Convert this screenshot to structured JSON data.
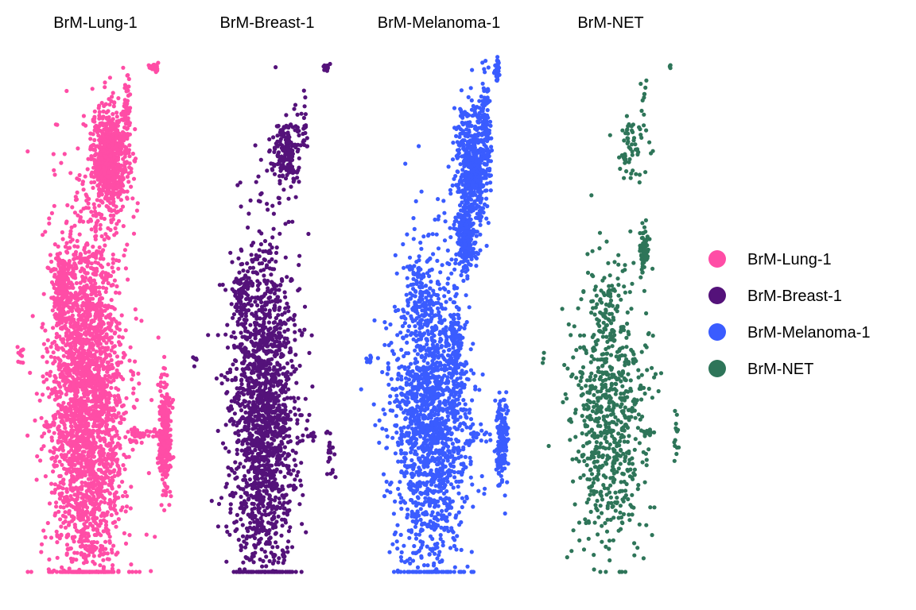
{
  "chart_data": {
    "type": "scatter",
    "panels": [
      {
        "title": "BrM-Lung-1",
        "color": "#FF4DA6",
        "clusters": [
          {
            "name": "top_spike",
            "cx": 3.0,
            "cy": 8.3,
            "sx": 0.05,
            "sy": 0.05,
            "n": 25
          },
          {
            "name": "upper_band",
            "cx": 1.95,
            "cy": 6.5,
            "sx": 0.22,
            "sy": 0.5,
            "n": 700
          },
          {
            "name": "upper_tail",
            "cx": 2.35,
            "cy": 7.3,
            "sx": 0.05,
            "sy": 0.45,
            "n": 60
          },
          {
            "name": "main_body",
            "cx": 1.4,
            "cy": 1.6,
            "sx": 0.45,
            "sy": 1.9,
            "n": 2600
          },
          {
            "name": "main_top",
            "cx": 0.8,
            "cy": 3.9,
            "sx": 0.1,
            "sy": 0.4,
            "n": 200
          },
          {
            "name": "left_arm",
            "cx": -0.2,
            "cy": 2.6,
            "sx": 0.04,
            "sy": 0.15,
            "n": 10
          },
          {
            "name": "bridge",
            "cx": 2.6,
            "cy": 1.0,
            "sx": 0.25,
            "sy": 0.08,
            "n": 45
          },
          {
            "name": "right_island",
            "cx": 3.25,
            "cy": 1.0,
            "sx": 0.08,
            "sy": 0.55,
            "n": 260
          }
        ]
      },
      {
        "title": "BrM-Breast-1",
        "color": "#54127A",
        "clusters": [
          {
            "name": "top_spike",
            "cx": 3.0,
            "cy": 8.3,
            "sx": 0.04,
            "sy": 0.05,
            "n": 12
          },
          {
            "name": "upper_band",
            "cx": 2.05,
            "cy": 6.6,
            "sx": 0.18,
            "sy": 0.35,
            "n": 180
          },
          {
            "name": "upper_tail",
            "cx": 2.5,
            "cy": 7.2,
            "sx": 0.04,
            "sy": 0.3,
            "n": 18
          },
          {
            "name": "main_body",
            "cx": 1.5,
            "cy": 1.4,
            "sx": 0.4,
            "sy": 1.7,
            "n": 1700
          },
          {
            "name": "main_top",
            "cx": 1.0,
            "cy": 3.8,
            "sx": 0.1,
            "sy": 0.3,
            "n": 60
          },
          {
            "name": "left_arm",
            "cx": -0.1,
            "cy": 2.5,
            "sx": 0.03,
            "sy": 0.12,
            "n": 6
          },
          {
            "name": "bridge",
            "cx": 2.6,
            "cy": 1.0,
            "sx": 0.12,
            "sy": 0.08,
            "n": 10
          },
          {
            "name": "right_island",
            "cx": 3.1,
            "cy": 0.6,
            "sx": 0.06,
            "sy": 0.3,
            "n": 22
          }
        ]
      },
      {
        "title": "BrM-Melanoma-1",
        "color": "#3A5CFF",
        "clusters": [
          {
            "name": "top_spike",
            "cx": 3.0,
            "cy": 8.25,
            "sx": 0.04,
            "sy": 0.12,
            "n": 40
          },
          {
            "name": "upper_band",
            "cx": 2.4,
            "cy": 6.3,
            "sx": 0.2,
            "sy": 0.6,
            "n": 500
          },
          {
            "name": "upper_tail",
            "cx": 2.7,
            "cy": 7.3,
            "sx": 0.06,
            "sy": 0.5,
            "n": 90
          },
          {
            "name": "diagonal",
            "cx": 2.25,
            "cy": 4.9,
            "sx": 0.12,
            "sy": 0.35,
            "n": 250
          },
          {
            "name": "main_body",
            "cx": 1.4,
            "cy": 1.3,
            "sx": 0.45,
            "sy": 1.6,
            "n": 1600
          },
          {
            "name": "main_top",
            "cx": 1.2,
            "cy": 3.6,
            "sx": 0.12,
            "sy": 0.4,
            "n": 80
          },
          {
            "name": "mid_column",
            "cx": 2.0,
            "cy": 2.6,
            "sx": 0.1,
            "sy": 0.5,
            "n": 120
          },
          {
            "name": "left_arm",
            "cx": -0.05,
            "cy": 2.5,
            "sx": 0.03,
            "sy": 0.12,
            "n": 8
          },
          {
            "name": "bridge",
            "cx": 2.55,
            "cy": 1.0,
            "sx": 0.15,
            "sy": 0.07,
            "n": 20
          },
          {
            "name": "right_island",
            "cx": 3.1,
            "cy": 0.95,
            "sx": 0.07,
            "sy": 0.45,
            "n": 160
          }
        ]
      },
      {
        "title": "BrM-NET",
        "color": "#2E7559",
        "clusters": [
          {
            "name": "top_spike",
            "cx": 3.0,
            "cy": 8.3,
            "sx": 0.03,
            "sy": 0.03,
            "n": 4
          },
          {
            "name": "upper_tail",
            "cx": 2.4,
            "cy": 7.6,
            "sx": 0.05,
            "sy": 0.25,
            "n": 10
          },
          {
            "name": "upper_band",
            "cx": 2.05,
            "cy": 6.6,
            "sx": 0.2,
            "sy": 0.35,
            "n": 60
          },
          {
            "name": "diagonal",
            "cx": 2.4,
            "cy": 4.7,
            "sx": 0.05,
            "sy": 0.25,
            "n": 70
          },
          {
            "name": "main_body",
            "cx": 1.55,
            "cy": 1.3,
            "sx": 0.45,
            "sy": 1.4,
            "n": 700
          },
          {
            "name": "main_top",
            "cx": 1.5,
            "cy": 3.6,
            "sx": 0.12,
            "sy": 0.45,
            "n": 40
          },
          {
            "name": "left_arm",
            "cx": 0.0,
            "cy": 2.6,
            "sx": 0.03,
            "sy": 0.06,
            "n": 3
          },
          {
            "name": "bridge",
            "cx": 2.5,
            "cy": 1.05,
            "sx": 0.08,
            "sy": 0.05,
            "n": 12
          },
          {
            "name": "right_island",
            "cx": 3.15,
            "cy": 0.9,
            "sx": 0.03,
            "sy": 0.35,
            "n": 14
          }
        ]
      }
    ],
    "legend": {
      "placement": "right",
      "items": [
        {
          "label": "BrM-Lung-1",
          "color": "#FF4DA6"
        },
        {
          "label": "BrM-Breast-1",
          "color": "#54127A"
        },
        {
          "label": "BrM-Melanoma-1",
          "color": "#3A5CFF"
        },
        {
          "label": "BrM-NET",
          "color": "#2E7559"
        }
      ]
    },
    "xlim": [
      -0.3,
      3.5
    ],
    "ylim": [
      -1.7,
      8.6
    ],
    "axes_visible": false,
    "grid": false
  }
}
